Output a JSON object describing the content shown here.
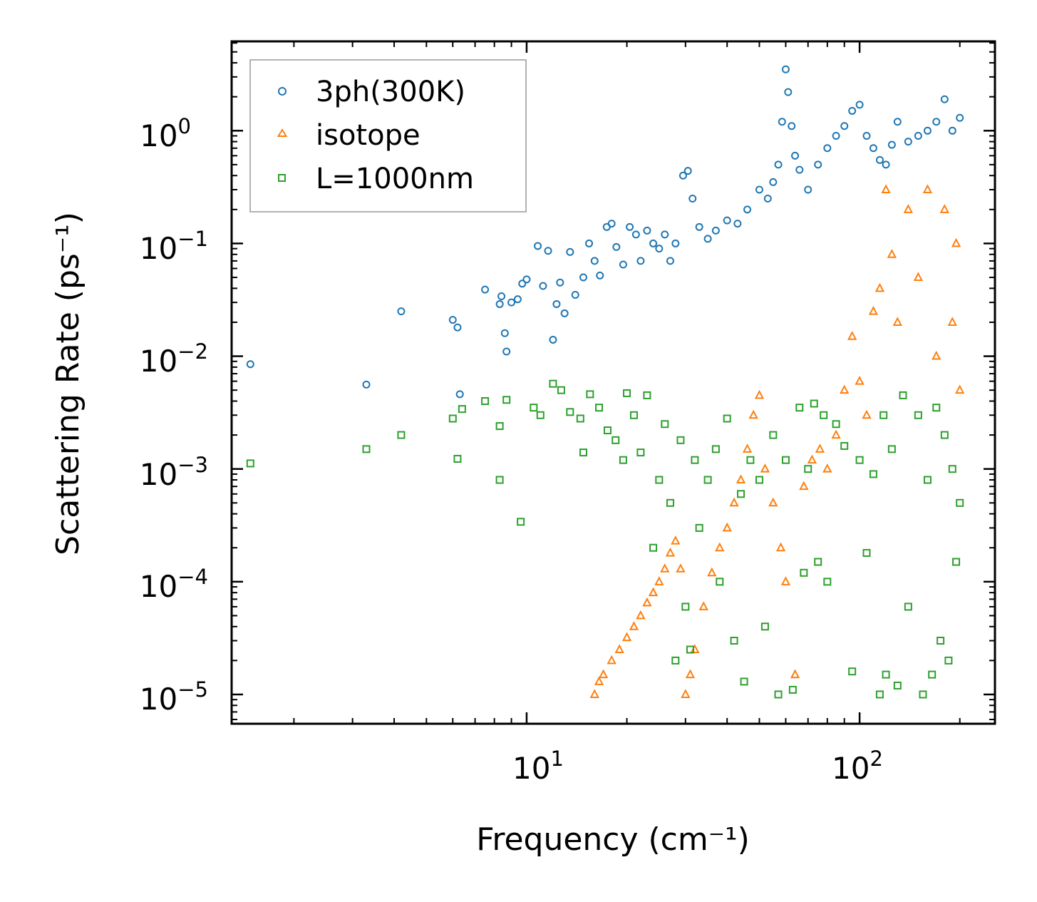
{
  "chart_data": {
    "type": "scatter",
    "xscale": "log",
    "yscale": "log",
    "xlabel": "Frequency (cm⁻¹)",
    "ylabel": "Scattering Rate (ps⁻¹)",
    "xlim": [
      1.3,
      255
    ],
    "ylim": [
      5.5e-06,
      6.2
    ],
    "x_tick_labels": [
      {
        "value": 10,
        "base": "10",
        "exp": "1"
      },
      {
        "value": 100,
        "base": "10",
        "exp": "2"
      }
    ],
    "y_tick_labels": [
      {
        "value": 1,
        "base": "10",
        "exp": "0"
      },
      {
        "value": 0.1,
        "base": "10",
        "exp": "−1"
      },
      {
        "value": 0.01,
        "base": "10",
        "exp": "−2"
      },
      {
        "value": 0.001,
        "base": "10",
        "exp": "−3"
      },
      {
        "value": 0.0001,
        "base": "10",
        "exp": "−4"
      },
      {
        "value": 1e-05,
        "base": "10",
        "exp": "−5"
      }
    ],
    "legend_position": "top-left",
    "series": [
      {
        "name": "3ph(300K)",
        "marker": "circle",
        "color": "#1f77b4",
        "points": [
          [
            1.48,
            0.0085
          ],
          [
            3.3,
            0.0056
          ],
          [
            4.2,
            0.025
          ],
          [
            6.0,
            0.021
          ],
          [
            6.2,
            0.018
          ],
          [
            6.3,
            0.0046
          ],
          [
            7.5,
            0.039
          ],
          [
            8.3,
            0.029
          ],
          [
            8.4,
            0.034
          ],
          [
            8.6,
            0.016
          ],
          [
            8.7,
            0.011
          ],
          [
            9.0,
            0.03
          ],
          [
            9.4,
            0.032
          ],
          [
            9.7,
            0.044
          ],
          [
            10.0,
            0.048
          ],
          [
            10.8,
            0.095
          ],
          [
            11.2,
            0.042
          ],
          [
            11.6,
            0.086
          ],
          [
            12.0,
            0.014
          ],
          [
            12.3,
            0.029
          ],
          [
            12.6,
            0.045
          ],
          [
            13.0,
            0.024
          ],
          [
            13.5,
            0.084
          ],
          [
            14.0,
            0.035
          ],
          [
            14.8,
            0.05
          ],
          [
            15.4,
            0.1
          ],
          [
            16.0,
            0.07
          ],
          [
            16.6,
            0.052
          ],
          [
            17.4,
            0.14
          ],
          [
            18.0,
            0.15
          ],
          [
            18.6,
            0.093
          ],
          [
            19.5,
            0.065
          ],
          [
            20.4,
            0.14
          ],
          [
            21.3,
            0.12
          ],
          [
            22.0,
            0.07
          ],
          [
            23.0,
            0.13
          ],
          [
            24.0,
            0.1
          ],
          [
            25.0,
            0.09
          ],
          [
            26.0,
            0.12
          ],
          [
            27.0,
            0.07
          ],
          [
            28.0,
            0.1
          ],
          [
            29.5,
            0.4
          ],
          [
            30.5,
            0.44
          ],
          [
            31.5,
            0.25
          ],
          [
            33.0,
            0.14
          ],
          [
            35.0,
            0.11
          ],
          [
            37.0,
            0.13
          ],
          [
            40.0,
            0.16
          ],
          [
            43.0,
            0.15
          ],
          [
            46.0,
            0.2
          ],
          [
            50.0,
            0.3
          ],
          [
            53.0,
            0.25
          ],
          [
            55.0,
            0.35
          ],
          [
            57.0,
            0.5
          ],
          [
            58.5,
            1.2
          ],
          [
            60.0,
            3.5
          ],
          [
            61.0,
            2.2
          ],
          [
            62.5,
            1.1
          ],
          [
            64.0,
            0.6
          ],
          [
            66.0,
            0.45
          ],
          [
            70.0,
            0.3
          ],
          [
            75.0,
            0.5
          ],
          [
            80.0,
            0.7
          ],
          [
            85.0,
            0.9
          ],
          [
            90.0,
            1.1
          ],
          [
            95.0,
            1.5
          ],
          [
            100.0,
            1.7
          ],
          [
            105.0,
            0.9
          ],
          [
            110.0,
            0.7
          ],
          [
            115.0,
            0.55
          ],
          [
            120.0,
            0.5
          ],
          [
            125.0,
            0.75
          ],
          [
            130.0,
            1.2
          ],
          [
            140.0,
            0.8
          ],
          [
            150.0,
            0.9
          ],
          [
            160.0,
            1.0
          ],
          [
            170.0,
            1.2
          ],
          [
            180.0,
            1.9
          ],
          [
            190.0,
            1.0
          ],
          [
            200.0,
            1.3
          ]
        ]
      },
      {
        "name": "isotope",
        "marker": "triangle",
        "color": "#ff7f0e",
        "points": [
          [
            16.0,
            1e-05
          ],
          [
            16.5,
            1.3e-05
          ],
          [
            17.0,
            1.5e-05
          ],
          [
            18.0,
            2e-05
          ],
          [
            19.0,
            2.5e-05
          ],
          [
            20.0,
            3.2e-05
          ],
          [
            21.0,
            4e-05
          ],
          [
            22.0,
            5e-05
          ],
          [
            23.0,
            6.5e-05
          ],
          [
            24.0,
            8e-05
          ],
          [
            25.0,
            0.0001
          ],
          [
            26.0,
            0.00013
          ],
          [
            27.0,
            0.00018
          ],
          [
            28.0,
            0.00023
          ],
          [
            29.0,
            0.00013
          ],
          [
            30.0,
            1e-05
          ],
          [
            31.0,
            1.5e-05
          ],
          [
            32.0,
            2.5e-05
          ],
          [
            34.0,
            6e-05
          ],
          [
            36.0,
            0.00012
          ],
          [
            38.0,
            0.0002
          ],
          [
            40.0,
            0.0003
          ],
          [
            42.0,
            0.0005
          ],
          [
            44.0,
            0.0008
          ],
          [
            46.0,
            0.0015
          ],
          [
            48.0,
            0.003
          ],
          [
            50.0,
            0.0045
          ],
          [
            52.0,
            0.001
          ],
          [
            55.0,
            0.0005
          ],
          [
            58.0,
            0.0002
          ],
          [
            60.0,
            0.0001
          ],
          [
            64.0,
            1.5e-05
          ],
          [
            68.0,
            0.0007
          ],
          [
            72.0,
            0.0012
          ],
          [
            76.0,
            0.0015
          ],
          [
            80.0,
            0.001
          ],
          [
            85.0,
            0.002
          ],
          [
            90.0,
            0.005
          ],
          [
            95.0,
            0.015
          ],
          [
            100.0,
            0.006
          ],
          [
            105.0,
            0.003
          ],
          [
            110.0,
            0.025
          ],
          [
            115.0,
            0.04
          ],
          [
            120.0,
            0.3
          ],
          [
            125.0,
            0.08
          ],
          [
            130.0,
            0.02
          ],
          [
            140.0,
            0.2
          ],
          [
            150.0,
            0.05
          ],
          [
            160.0,
            0.3
          ],
          [
            170.0,
            0.01
          ],
          [
            180.0,
            0.2
          ],
          [
            190.0,
            0.02
          ],
          [
            195.0,
            0.1
          ],
          [
            200.0,
            0.005
          ]
        ]
      },
      {
        "name": "L=1000nm",
        "marker": "square",
        "color": "#2ca02c",
        "points": [
          [
            1.48,
            0.00112
          ],
          [
            3.3,
            0.0015
          ],
          [
            4.2,
            0.002
          ],
          [
            6.0,
            0.0028
          ],
          [
            6.2,
            0.00123
          ],
          [
            6.4,
            0.0034
          ],
          [
            7.5,
            0.004
          ],
          [
            8.3,
            0.0024
          ],
          [
            8.3,
            0.0008
          ],
          [
            8.7,
            0.0041
          ],
          [
            9.6,
            0.00034
          ],
          [
            10.5,
            0.0035
          ],
          [
            11.0,
            0.003
          ],
          [
            12.0,
            0.0057
          ],
          [
            12.7,
            0.005
          ],
          [
            13.5,
            0.0032
          ],
          [
            14.5,
            0.0028
          ],
          [
            14.8,
            0.0014
          ],
          [
            15.5,
            0.0046
          ],
          [
            16.5,
            0.0035
          ],
          [
            17.5,
            0.0022
          ],
          [
            18.5,
            0.0018
          ],
          [
            19.5,
            0.0012
          ],
          [
            20.0,
            0.0047
          ],
          [
            21.0,
            0.003
          ],
          [
            22.0,
            0.0014
          ],
          [
            23.0,
            0.0045
          ],
          [
            24.0,
            0.0002
          ],
          [
            25.0,
            0.0008
          ],
          [
            26.0,
            0.0025
          ],
          [
            27.0,
            0.0005
          ],
          [
            28.0,
            2e-05
          ],
          [
            29.0,
            0.0018
          ],
          [
            30.0,
            6e-05
          ],
          [
            31.0,
            2.5e-05
          ],
          [
            32.0,
            0.0012
          ],
          [
            33.0,
            0.0003
          ],
          [
            35.0,
            0.0008
          ],
          [
            37.0,
            0.0015
          ],
          [
            38.0,
            0.0001
          ],
          [
            40.0,
            0.0028
          ],
          [
            42.0,
            3e-05
          ],
          [
            44.0,
            0.0006
          ],
          [
            45.0,
            1.3e-05
          ],
          [
            47.0,
            0.0012
          ],
          [
            50.0,
            0.0008
          ],
          [
            52.0,
            4e-05
          ],
          [
            55.0,
            0.002
          ],
          [
            57.0,
            1e-05
          ],
          [
            60.0,
            0.0012
          ],
          [
            63.0,
            1.1e-05
          ],
          [
            66.0,
            0.0035
          ],
          [
            68.0,
            0.00012
          ],
          [
            70.0,
            0.001
          ],
          [
            73.0,
            0.0038
          ],
          [
            75.0,
            0.00015
          ],
          [
            78.0,
            0.003
          ],
          [
            80.0,
            0.0001
          ],
          [
            85.0,
            0.0025
          ],
          [
            90.0,
            0.0016
          ],
          [
            95.0,
            1.6e-05
          ],
          [
            100.0,
            0.0012
          ],
          [
            105.0,
            0.00018
          ],
          [
            110.0,
            0.0009
          ],
          [
            115.0,
            1e-05
          ],
          [
            118.0,
            0.003
          ],
          [
            120.0,
            1.5e-05
          ],
          [
            125.0,
            0.0015
          ],
          [
            130.0,
            1.2e-05
          ],
          [
            135.0,
            0.0045
          ],
          [
            140.0,
            6e-05
          ],
          [
            150.0,
            0.003
          ],
          [
            155.0,
            1e-05
          ],
          [
            160.0,
            0.0008
          ],
          [
            165.0,
            1.5e-05
          ],
          [
            170.0,
            0.0035
          ],
          [
            175.0,
            3e-05
          ],
          [
            180.0,
            0.002
          ],
          [
            185.0,
            2e-05
          ],
          [
            190.0,
            0.001
          ],
          [
            195.0,
            0.00015
          ],
          [
            200.0,
            0.0005
          ]
        ]
      }
    ]
  }
}
